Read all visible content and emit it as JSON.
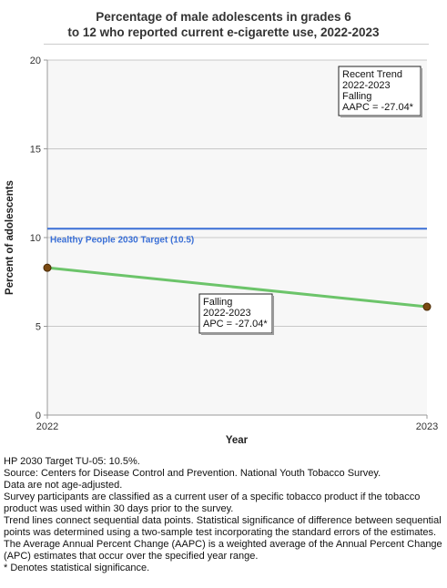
{
  "chart_data": {
    "type": "line",
    "title_lines": [
      "Percentage of male adolescents in grades 6",
      "to 12 who reported current e-cigarette use, 2022-2023"
    ],
    "xlabel": "Year",
    "ylabel": "Percent of adolescents",
    "x": [
      2022,
      2023
    ],
    "x_tick_labels": [
      "2022",
      "2023"
    ],
    "ylim": [
      0,
      20
    ],
    "y_ticks": [
      0,
      5,
      10,
      15,
      20
    ],
    "grid": true,
    "series": [
      {
        "values": [
          8.3,
          6.1
        ],
        "color": "#6cc46a",
        "marker_color": "#7a4a12"
      }
    ],
    "target": {
      "value": 10.5,
      "label": "Healthy People 2030 Target (10.5)",
      "color": "#3a6fd6"
    },
    "annotations": {
      "trend_box": [
        "Recent Trend",
        "2022-2023",
        "Falling",
        "AAPC = -27.04*"
      ],
      "segment_box": [
        "Falling",
        "2022-2023",
        "APC = -27.04*"
      ]
    }
  },
  "footnotes": [
    "HP 2030 Target TU-05: 10.5%.",
    "Source: Centers for Disease Control and Prevention. National Youth Tobacco Survey.",
    "Data are not age-adjusted.",
    "Survey participants are classified as a current user of a specific tobacco product if the tobacco product was used within 30 days prior to the survey.",
    "Trend lines connect sequential data points. Statistical significance of difference between sequential points was determined using a two-sample test incorporating the standard errors of the estimates.",
    "The Average Annual Percent Change (AAPC) is a weighted average of the Annual Percent Change (APC) estimates that occur over the specified year range.",
    "* Denotes statistical significance."
  ]
}
